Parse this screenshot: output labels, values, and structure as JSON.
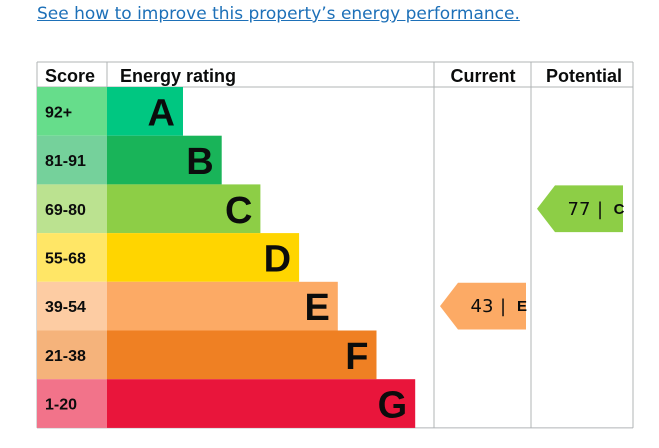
{
  "link": {
    "text": "See how to improve this property’s energy performance."
  },
  "headers": {
    "score": "Score",
    "energy_rating": "Energy rating",
    "current": "Current",
    "potential": "Potential"
  },
  "colors": {
    "A": "#00c781",
    "B": "#19b459",
    "C": "#8dce46",
    "D": "#ffd500",
    "E": "#fcaa65",
    "F": "#ef8023",
    "G": "#e9153b",
    "A_light": "#66dd8b",
    "B_light": "#75d19b",
    "C_light": "#bbe290",
    "D_light": "#ffe666",
    "E_light": "#fdcca3",
    "F_light": "#f5b37b",
    "G_light": "#f2738a",
    "grid": "#b1b4b6"
  },
  "chart_data": {
    "type": "bar",
    "categories": [
      "A",
      "B",
      "C",
      "D",
      "E",
      "F",
      "G"
    ],
    "score_ranges": [
      "92+",
      "81-91",
      "69-80",
      "55-68",
      "39-54",
      "21-38",
      "1-20"
    ],
    "current": {
      "value": 43,
      "band": "E"
    },
    "potential": {
      "value": 77,
      "band": "C"
    }
  }
}
